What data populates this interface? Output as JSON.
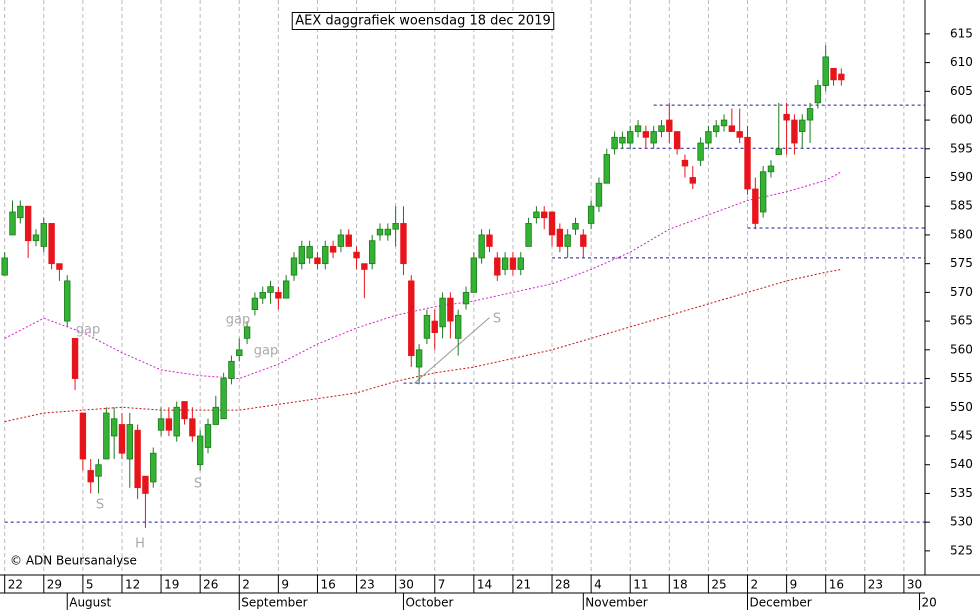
{
  "chart_data": {
    "type": "candlestick",
    "title": "AEX daggrafiek woensdag 18 dec 2019",
    "credit": "© ADN Beursanalyse",
    "open": [
      573,
      580,
      583,
      585,
      579,
      578,
      582,
      575,
      565,
      562,
      549,
      539,
      538,
      541,
      545,
      547,
      541,
      546,
      538,
      537,
      546,
      548,
      545,
      551,
      548,
      540,
      543,
      547,
      548,
      555,
      559,
      562,
      567,
      569,
      570,
      570,
      569,
      573,
      575,
      576,
      576,
      575,
      578,
      578,
      580,
      577,
      575,
      575,
      580,
      580,
      581,
      582,
      572,
      557,
      562,
      565,
      564,
      569,
      562,
      568,
      570,
      576,
      580,
      576,
      574,
      576,
      574,
      578,
      583,
      584,
      584,
      581,
      578,
      581,
      580,
      582,
      585,
      589,
      595,
      596,
      596,
      598,
      598,
      596,
      598,
      600,
      598,
      593,
      590,
      593,
      596,
      598,
      599,
      599,
      598,
      597,
      588,
      584,
      591,
      594,
      601,
      600,
      598,
      600,
      603,
      606,
      609,
      608
    ],
    "high": [
      577,
      586,
      586,
      585,
      581,
      583,
      582,
      575,
      573,
      562,
      549,
      541,
      541,
      550,
      550,
      549,
      549,
      547,
      538,
      543,
      550,
      550,
      551,
      551,
      550,
      546,
      548,
      552,
      556,
      559,
      562,
      565,
      570,
      571,
      572,
      571,
      573,
      577,
      579,
      579,
      577,
      579,
      579,
      581,
      581,
      578,
      575,
      580,
      582,
      582,
      585,
      585,
      573,
      561,
      567,
      567,
      570,
      570,
      567,
      571,
      577,
      581,
      581,
      577,
      577,
      577,
      577,
      583,
      585,
      585,
      584,
      582,
      581,
      583,
      581,
      586,
      590,
      595,
      598,
      598,
      599,
      600,
      599,
      599,
      600,
      603,
      598,
      594,
      592,
      597,
      599,
      600,
      601,
      602,
      602,
      599,
      590,
      592,
      593,
      603,
      603,
      601,
      601,
      603,
      607,
      613,
      609,
      609
    ],
    "low": [
      573,
      580,
      582,
      576,
      578,
      577,
      574,
      572,
      564,
      553,
      539,
      535,
      535,
      541,
      541,
      541,
      536,
      534,
      529,
      536,
      545,
      545,
      544,
      547,
      544,
      539,
      542,
      547,
      548,
      554,
      558,
      561,
      566,
      568,
      568,
      567,
      569,
      572,
      574,
      575,
      574,
      574,
      576,
      577,
      578,
      574,
      569,
      574,
      579,
      579,
      578,
      573,
      557,
      554,
      561,
      560,
      562,
      562,
      559,
      567,
      570,
      575,
      577,
      572,
      573,
      573,
      573,
      578,
      582,
      581,
      578,
      577,
      576,
      580,
      576,
      581,
      584,
      589,
      594,
      595,
      595,
      597,
      595,
      595,
      597,
      596,
      594,
      590,
      588,
      592,
      595,
      597,
      598,
      598,
      596,
      587,
      581,
      583,
      590,
      594,
      594,
      594,
      595,
      596,
      602,
      605,
      606,
      606
    ],
    "close": [
      576,
      584,
      585,
      579,
      580,
      582,
      575,
      574,
      572,
      555,
      541,
      537,
      540,
      549,
      548,
      542,
      547,
      536,
      535,
      542,
      548,
      546,
      550,
      548,
      545,
      545,
      547,
      550,
      555,
      558,
      560,
      564,
      569,
      570,
      571,
      569,
      572,
      576,
      578,
      578,
      575,
      578,
      577,
      580,
      578,
      576,
      574,
      579,
      581,
      581,
      582,
      575,
      559,
      560,
      566,
      563,
      569,
      565,
      566,
      570,
      576,
      580,
      578,
      573,
      576,
      574,
      576,
      582,
      584,
      583,
      580,
      578,
      580,
      582,
      578,
      585,
      589,
      594,
      597,
      597,
      598,
      599,
      597,
      598,
      599,
      598,
      595,
      592,
      589,
      596,
      598,
      599,
      600,
      598,
      597,
      588,
      582,
      591,
      592,
      595,
      600,
      596,
      600,
      602,
      606,
      611,
      607,
      607
    ],
    "colors": {
      "up": "#33b233",
      "down": "#e8141c"
    },
    "ylim": [
      520.8,
      620.9
    ],
    "yticks": [
      525,
      530,
      535,
      540,
      545,
      550,
      555,
      560,
      565,
      570,
      575,
      580,
      585,
      590,
      595,
      600,
      605,
      610,
      615
    ],
    "xlim": [
      -0.6,
      117.7
    ],
    "xticks": [
      {
        "value": 0,
        "label": "22"
      },
      {
        "value": 5,
        "label": "29"
      },
      {
        "value": 10,
        "label": "5"
      },
      {
        "value": 15,
        "label": "12"
      },
      {
        "value": 20,
        "label": "19"
      },
      {
        "value": 25,
        "label": "26"
      },
      {
        "value": 30,
        "label": "2"
      },
      {
        "value": 35,
        "label": "9"
      },
      {
        "value": 40,
        "label": "16"
      },
      {
        "value": 45,
        "label": "23"
      },
      {
        "value": 50,
        "label": "30"
      },
      {
        "value": 55,
        "label": "7"
      },
      {
        "value": 60,
        "label": "14"
      },
      {
        "value": 65,
        "label": "21"
      },
      {
        "value": 70,
        "label": "28"
      },
      {
        "value": 75,
        "label": "4"
      },
      {
        "value": 80,
        "label": "11"
      },
      {
        "value": 85,
        "label": "18"
      },
      {
        "value": 90,
        "label": "25"
      },
      {
        "value": 95,
        "label": "2"
      },
      {
        "value": 100,
        "label": "9"
      },
      {
        "value": 105,
        "label": "16"
      },
      {
        "value": 110,
        "label": "23"
      },
      {
        "value": 115,
        "label": "30"
      }
    ],
    "months": [
      {
        "value": 8,
        "label": "August"
      },
      {
        "value": 30,
        "label": "September"
      },
      {
        "value": 51,
        "label": "October"
      },
      {
        "value": 74,
        "label": "November"
      },
      {
        "value": 95,
        "label": "December"
      },
      {
        "value": 117,
        "label": "20"
      }
    ],
    "grid": true,
    "moving_averages": [
      {
        "color": "#d020d0",
        "x": [
          0,
          5,
          10,
          15,
          20,
          25,
          30,
          35,
          40,
          45,
          50,
          55,
          60,
          65,
          70,
          75,
          80,
          85,
          90,
          95,
          100,
          105,
          107
        ],
        "values": [
          562,
          565.5,
          563,
          559.5,
          556.5,
          555.5,
          555,
          557.5,
          561,
          563.8,
          566,
          567.5,
          568.5,
          570,
          571.5,
          574,
          577,
          581,
          583.5,
          586,
          587.5,
          589.5,
          591
        ]
      },
      {
        "color": "#c81010",
        "x": [
          0,
          5,
          10,
          15,
          20,
          25,
          30,
          35,
          40,
          45,
          50,
          55,
          60,
          65,
          70,
          75,
          80,
          85,
          90,
          95,
          100,
          105,
          107
        ],
        "values": [
          547.5,
          549,
          549.5,
          550,
          549.5,
          549.5,
          549.5,
          550.5,
          551.5,
          552.5,
          554.5,
          556,
          557,
          558.5,
          560,
          562,
          564,
          566,
          568,
          570,
          572,
          573.5,
          574
        ]
      }
    ],
    "levels": [
      {
        "value": 602.6,
        "from": 83
      },
      {
        "value": 595.1,
        "from": 78
      },
      {
        "value": 581.2,
        "from": 95
      },
      {
        "value": 576,
        "from": 70
      },
      {
        "value": 554.2,
        "from": 51
      },
      {
        "value": 530,
        "from": 0
      }
    ],
    "level_color": "#1a1aa0",
    "trendline": {
      "x": [
        52.4,
        62
      ],
      "values": [
        554.2,
        565.6
      ]
    },
    "annotations": [
      "gap",
      "gap",
      "gap",
      "S",
      "S",
      "S",
      "H"
    ]
  }
}
